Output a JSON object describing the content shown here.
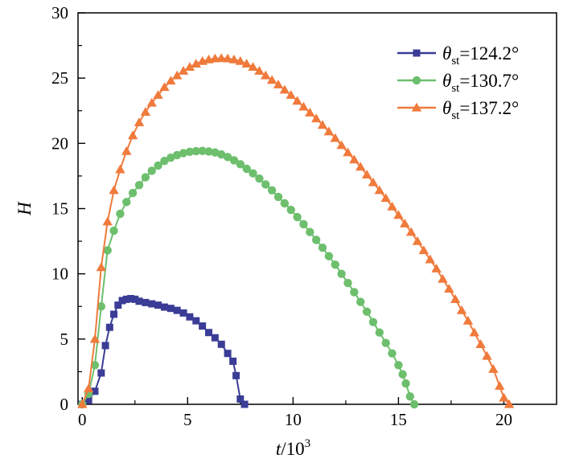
{
  "chart_data": {
    "type": "line",
    "title": "",
    "xlabel": "t/10³",
    "xlabel_var": "t",
    "xlabel_rest": "/10",
    "xlabel_sup": "3",
    "ylabel": "H",
    "xlim": [
      -0.2,
      22.5
    ],
    "ylim": [
      0,
      30
    ],
    "xticks": [
      0,
      5,
      10,
      15,
      20
    ],
    "yticks": [
      0,
      5,
      10,
      15,
      20,
      25,
      30
    ],
    "xtick_labels": [
      "0",
      "5",
      "10",
      "15",
      "20"
    ],
    "ytick_labels": [
      "0",
      "5",
      "10",
      "15",
      "20",
      "25",
      "30"
    ],
    "grid": false,
    "legend_position": "top-right",
    "series": [
      {
        "name": "θst=124.2°",
        "name_symbol": "θ",
        "name_sub": "st",
        "name_value": "=124.2°",
        "color": "#3a3c96",
        "marker": "square",
        "x": [
          0,
          0.3,
          0.6,
          0.9,
          1.1,
          1.3,
          1.5,
          1.7,
          1.9,
          2.1,
          2.3,
          2.5,
          2.7,
          3.0,
          3.3,
          3.6,
          3.9,
          4.2,
          4.5,
          4.8,
          5.1,
          5.4,
          5.7,
          6.0,
          6.3,
          6.6,
          6.9,
          7.15,
          7.3,
          7.5,
          7.7
        ],
        "y": [
          0,
          0.3,
          1.0,
          2.4,
          4.5,
          5.9,
          6.9,
          7.6,
          7.95,
          8.05,
          8.1,
          8.05,
          7.9,
          7.8,
          7.7,
          7.6,
          7.45,
          7.35,
          7.2,
          7.0,
          6.7,
          6.4,
          6.0,
          5.5,
          5.1,
          4.6,
          3.9,
          3.3,
          2.2,
          0.4,
          0
        ]
      },
      {
        "name": "θst=130.7°",
        "name_symbol": "θ",
        "name_sub": "st",
        "name_value": "=130.7°",
        "color": "#6dbf6d",
        "marker": "circle",
        "x": [
          0,
          0.3,
          0.6,
          0.9,
          1.2,
          1.5,
          1.8,
          2.1,
          2.4,
          2.7,
          3.0,
          3.3,
          3.6,
          3.9,
          4.2,
          4.5,
          4.8,
          5.1,
          5.4,
          5.7,
          6.0,
          6.3,
          6.6,
          6.9,
          7.2,
          7.5,
          7.8,
          8.1,
          8.4,
          8.7,
          9.0,
          9.3,
          9.6,
          9.9,
          10.2,
          10.5,
          10.8,
          11.1,
          11.4,
          11.7,
          12.0,
          12.3,
          12.6,
          12.9,
          13.2,
          13.5,
          13.8,
          14.1,
          14.4,
          14.7,
          15.0,
          15.2,
          15.35,
          15.55,
          15.75
        ],
        "y": [
          0,
          0.8,
          3.0,
          7.5,
          11.8,
          13.3,
          14.6,
          15.5,
          16.2,
          16.8,
          17.4,
          17.9,
          18.3,
          18.65,
          18.9,
          19.1,
          19.25,
          19.35,
          19.4,
          19.42,
          19.38,
          19.3,
          19.15,
          18.95,
          18.7,
          18.4,
          18.05,
          17.7,
          17.3,
          16.85,
          16.4,
          15.9,
          15.4,
          14.9,
          14.35,
          13.8,
          13.2,
          12.6,
          12.0,
          11.35,
          10.7,
          10.0,
          9.3,
          8.6,
          7.85,
          7.1,
          6.3,
          5.5,
          4.7,
          3.9,
          3.0,
          2.3,
          1.6,
          0.6,
          0
        ]
      },
      {
        "name": "θst=137.2°",
        "name_symbol": "θ",
        "name_sub": "st",
        "name_value": "=137.2°",
        "color": "#f07a3c",
        "marker": "triangle",
        "x": [
          0,
          0.3,
          0.6,
          0.9,
          1.2,
          1.5,
          1.8,
          2.1,
          2.4,
          2.7,
          3.0,
          3.3,
          3.6,
          3.9,
          4.2,
          4.5,
          4.8,
          5.1,
          5.4,
          5.7,
          6.0,
          6.3,
          6.6,
          6.9,
          7.2,
          7.5,
          7.8,
          8.1,
          8.4,
          8.7,
          9.0,
          9.3,
          9.6,
          9.9,
          10.2,
          10.5,
          10.8,
          11.1,
          11.4,
          11.7,
          12.0,
          12.3,
          12.6,
          12.9,
          13.2,
          13.5,
          13.8,
          14.1,
          14.4,
          14.7,
          15.0,
          15.3,
          15.6,
          15.9,
          16.2,
          16.5,
          16.8,
          17.1,
          17.4,
          17.7,
          18.0,
          18.3,
          18.6,
          18.9,
          19.2,
          19.5,
          19.8,
          20.0,
          20.25
        ],
        "y": [
          0,
          1.2,
          5.0,
          10.5,
          14.0,
          16.4,
          18.0,
          19.4,
          20.6,
          21.6,
          22.4,
          23.1,
          23.7,
          24.3,
          24.8,
          25.2,
          25.55,
          25.85,
          26.1,
          26.3,
          26.42,
          26.5,
          26.52,
          26.5,
          26.42,
          26.3,
          26.1,
          25.85,
          25.55,
          25.2,
          24.85,
          24.5,
          24.1,
          23.7,
          23.25,
          22.8,
          22.35,
          21.9,
          21.4,
          20.9,
          20.4,
          19.85,
          19.3,
          18.75,
          18.2,
          17.6,
          17.0,
          16.4,
          15.8,
          15.15,
          14.5,
          13.85,
          13.2,
          12.5,
          11.8,
          11.1,
          10.4,
          9.6,
          8.85,
          8.05,
          7.2,
          6.4,
          5.5,
          4.6,
          3.7,
          2.7,
          1.4,
          0.5,
          0
        ]
      }
    ]
  }
}
